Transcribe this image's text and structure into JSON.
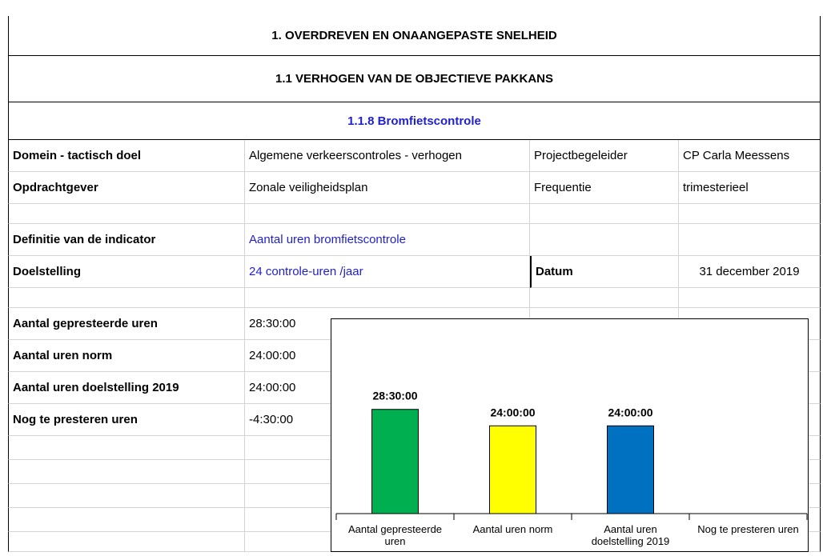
{
  "header": {
    "title": "1. OVERDREVEN EN ONAANGEPASTE SNELHEID",
    "subtitle": "1.1 VERHOGEN VAN DE OBJECTIEVE PAKKANS",
    "section": "1.1.8 Bromfietscontrole"
  },
  "info": {
    "rows": [
      [
        "Domein - tactisch doel",
        "Algemene verkeerscontroles - verhogen",
        "Projectbegeleider",
        "CP Carla Meessens"
      ],
      [
        "Opdrachtgever",
        "Zonale veiligheidsplan",
        "Frequentie",
        "trimesterieel"
      ]
    ]
  },
  "indicator": {
    "rows": [
      [
        "Definitie van de indicator",
        "Aantal uren bromfietscontrole"
      ],
      [
        "Doelstelling",
        "24 controle-uren /jaar",
        "Datum",
        "31 december 2019"
      ]
    ]
  },
  "hours": {
    "rows": [
      [
        "Aantal gepresteerde uren",
        "28:30:00"
      ],
      [
        "Aantal uren norm",
        "24:00:00"
      ],
      [
        "Aantal uren doelstelling 2019",
        "24:00:00"
      ],
      [
        "Nog te presteren uren",
        "-4:30:00"
      ]
    ]
  },
  "chart_data": {
    "type": "bar",
    "categories": [
      "Aantal gepresteerde uren",
      "Aantal uren norm",
      "Aantal uren doelstelling 2019",
      "Nog te presteren uren"
    ],
    "values": [
      28.5,
      24,
      24,
      null
    ],
    "value_labels": [
      "28:30:00",
      "24:00:00",
      "24:00:00",
      null
    ],
    "colors": [
      "#00b050",
      "#ffff00",
      "#0070c0",
      "#7f7f7f"
    ],
    "ylim": [
      0,
      35
    ]
  }
}
